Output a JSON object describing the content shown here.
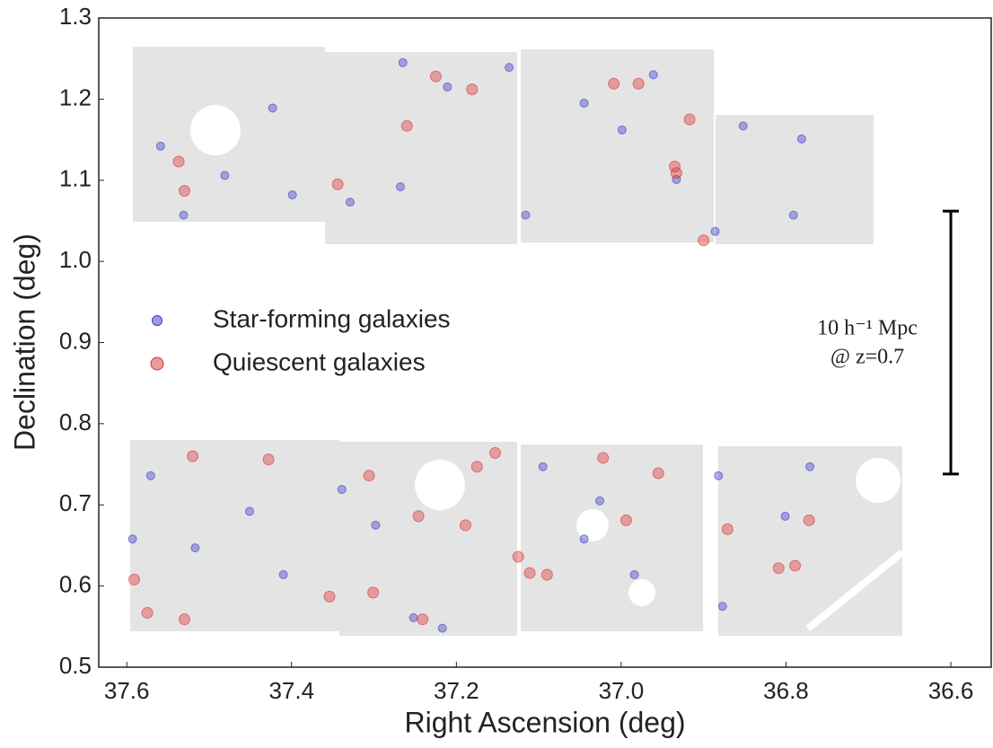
{
  "chart_data": {
    "type": "scatter",
    "xlabel": "Right Ascension (deg)",
    "ylabel": "Declination (deg)",
    "xlim": [
      37.634,
      36.551
    ],
    "ylim": [
      0.5,
      1.3
    ],
    "xticks": [
      37.6,
      37.4,
      37.2,
      {
        "value": 37.0,
        "label": "37.0"
      },
      36.8,
      36.6
    ],
    "yticks": [
      0.5,
      0.6,
      0.7,
      0.8,
      0.9,
      {
        "value": 1.0,
        "label": "1.0"
      },
      1.1,
      1.2,
      1.3
    ],
    "legend_position": "center-left",
    "series": [
      {
        "name": "Star-forming galaxies",
        "color": "#3a3acc",
        "x": [
          37.531,
          37.559,
          37.423,
          37.399,
          37.265,
          37.211,
          37.329,
          37.136,
          36.999,
          36.961,
          36.886,
          36.791,
          36.781,
          37.045,
          37.116,
          37.481,
          37.268,
          36.933,
          36.852,
          37.571,
          37.517,
          37.451,
          37.339,
          37.252,
          37.217,
          37.026,
          37.045,
          37.095,
          36.882,
          36.877,
          36.801,
          36.771,
          36.984,
          37.41,
          37.298,
          37.593
        ],
        "values": [
          1.057,
          1.142,
          1.189,
          1.082,
          1.245,
          1.215,
          1.073,
          1.239,
          1.162,
          1.23,
          1.037,
          1.057,
          1.151,
          1.195,
          1.057,
          1.106,
          1.092,
          1.101,
          1.167,
          0.736,
          0.647,
          0.692,
          0.719,
          0.561,
          0.548,
          0.705,
          0.658,
          0.747,
          0.736,
          0.575,
          0.686,
          0.747,
          0.614,
          0.614,
          0.675,
          0.658
        ]
      },
      {
        "name": "Quiescent galaxies",
        "color": "#dd3333",
        "x": [
          37.53,
          37.344,
          37.26,
          37.225,
          37.181,
          37.009,
          36.979,
          36.933,
          36.917,
          36.9,
          37.575,
          37.53,
          37.52,
          37.428,
          37.306,
          37.241,
          37.246,
          37.189,
          37.175,
          37.153,
          37.125,
          37.111,
          37.09,
          37.022,
          36.994,
          36.955,
          36.935,
          36.871,
          36.809,
          36.789,
          36.772,
          37.354,
          37.301,
          37.591,
          37.537
        ],
        "values": [
          1.087,
          1.095,
          1.167,
          1.228,
          1.212,
          1.219,
          1.219,
          1.109,
          1.175,
          1.026,
          0.567,
          0.559,
          0.76,
          0.756,
          0.736,
          0.559,
          0.686,
          0.675,
          0.747,
          0.764,
          0.636,
          0.616,
          0.614,
          0.758,
          0.681,
          0.739,
          1.117,
          0.67,
          0.622,
          0.625,
          0.681,
          0.587,
          0.592,
          0.608,
          1.123
        ]
      }
    ],
    "scale_bar": {
      "x": 36.6,
      "y": [
        0.738,
        1.062
      ],
      "label": [
        "10 h⁻¹ Mpc",
        "@ z=0.7"
      ]
    }
  }
}
